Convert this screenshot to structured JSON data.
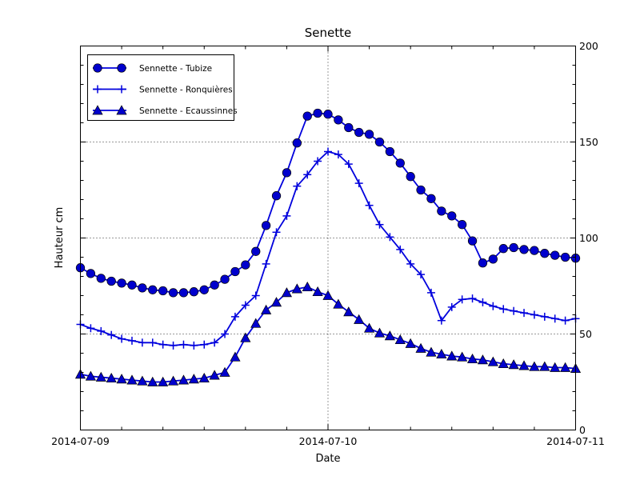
{
  "chart_data": {
    "type": "line",
    "title": "Senette",
    "xlabel": "Date",
    "ylabel": "Hauteur cm",
    "ylim": [
      0,
      200
    ],
    "x_range_hours": [
      0,
      48
    ],
    "x_start": "2014-07-09 00:00",
    "sampling": "hourly",
    "grid": {
      "horizontal_at": [
        50,
        100,
        150
      ],
      "vertical_at_hours": [
        24
      ],
      "style": "dotted"
    },
    "x_ticks": [
      {
        "hour": 0,
        "label": "2014-07-09"
      },
      {
        "hour": 24,
        "label": "2014-07-10"
      },
      {
        "hour": 48,
        "label": "2014-07-11"
      }
    ],
    "y_ticks": [
      {
        "value": 0,
        "label": "0"
      },
      {
        "value": 50,
        "label": "50"
      },
      {
        "value": 100,
        "label": "100"
      },
      {
        "value": 150,
        "label": "150"
      },
      {
        "value": 200,
        "label": "200"
      }
    ],
    "minor_tick_step_x_hours": 4,
    "minor_tick_step_y": 10,
    "y_tick_label_side": "right",
    "legend_position": "upper-left",
    "series_color": "#0000dd",
    "marker_fill": "#0000cd",
    "marker_edge": "#000000",
    "series": [
      {
        "name": "Sennette - Tubize",
        "marker": "circle",
        "values": [
          84.5,
          81.5,
          79,
          77.5,
          76.5,
          75.5,
          74,
          73,
          72.5,
          71.5,
          71.5,
          72,
          73,
          75.5,
          78.5,
          82.5,
          86,
          93,
          106.5,
          122,
          134,
          149.5,
          163.5,
          165,
          164.5,
          161.5,
          157.5,
          155,
          154,
          150,
          145,
          139,
          132,
          125,
          120.5,
          114,
          111.5,
          107,
          98.5,
          87,
          89,
          94.5,
          95,
          94,
          93.5,
          92,
          91,
          90,
          89.5
        ]
      },
      {
        "name": "Sennette - Ronquières",
        "marker": "plus",
        "values": [
          55,
          53,
          51.5,
          49.5,
          47.5,
          46.5,
          45.5,
          45.5,
          44.5,
          44,
          44.5,
          44,
          44.5,
          45.5,
          50,
          59,
          65,
          70,
          86.5,
          103,
          111.5,
          127,
          133,
          140,
          145,
          143.5,
          138.5,
          128.5,
          117,
          107,
          100.5,
          94,
          86.5,
          81,
          71.5,
          57,
          64,
          68,
          68.5,
          66.5,
          64.5,
          63,
          62,
          61,
          60,
          59,
          58,
          57,
          58
        ]
      },
      {
        "name": "Sennette - Ecaussinnes",
        "marker": "triangle",
        "values": [
          29,
          28,
          27.5,
          27,
          26.5,
          26,
          25.5,
          25,
          25,
          25.5,
          26,
          26.5,
          27,
          28.5,
          30,
          38,
          48,
          55.5,
          62.5,
          66.5,
          71.5,
          73.5,
          74.5,
          72,
          70,
          65.5,
          61.5,
          57.5,
          53,
          50.5,
          49,
          47,
          45,
          42.5,
          40.5,
          39.5,
          38.5,
          38,
          37,
          36.5,
          35.5,
          34.5,
          34,
          33.5,
          33,
          33,
          32.5,
          32.5,
          32
        ]
      }
    ]
  }
}
